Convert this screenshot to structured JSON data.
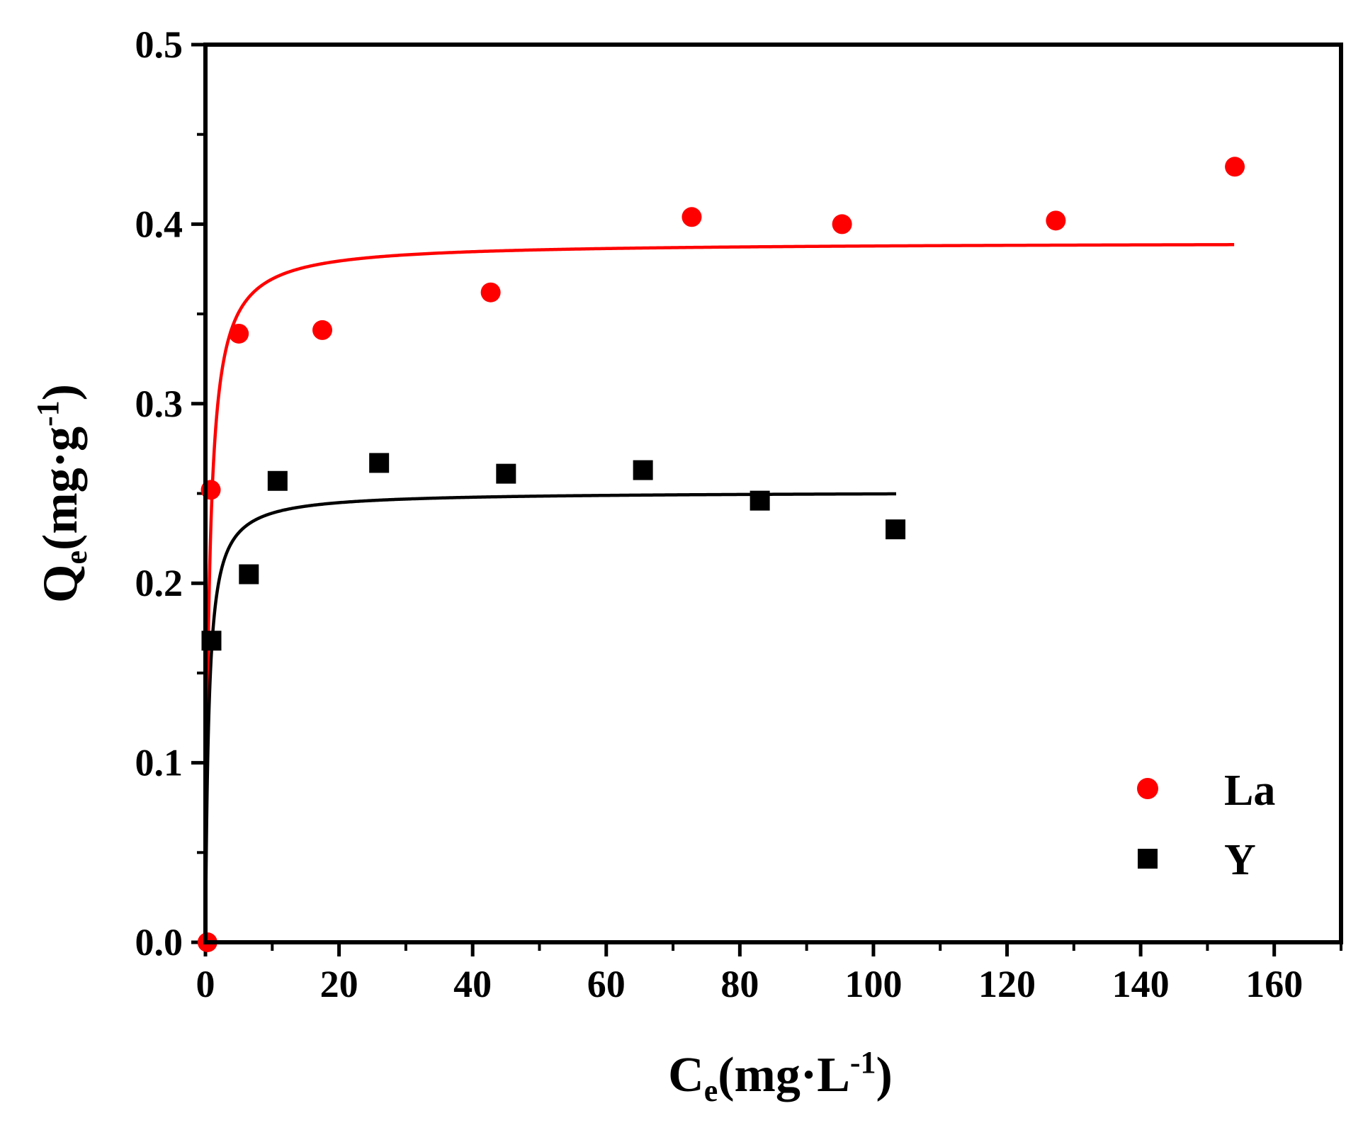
{
  "chart_data": {
    "type": "scatter",
    "title": "",
    "xlabel": {
      "main": "C",
      "sub": "e",
      "paren_open": "(mg·L",
      "sup": "-1",
      "paren_close": ")"
    },
    "ylabel": {
      "main": "Q",
      "sub": "e",
      "paren_open": "(mg·g",
      "sup": "-1",
      "paren_close": ")"
    },
    "xlim": [
      0,
      170
    ],
    "ylim": [
      0,
      0.5
    ],
    "x_ticks": [
      {
        "value": 0,
        "label": "0"
      },
      {
        "value": 20,
        "label": "20"
      },
      {
        "value": 40,
        "label": "40"
      },
      {
        "value": 60,
        "label": "60"
      },
      {
        "value": 80,
        "label": "80"
      },
      {
        "value": 100,
        "label": "100"
      },
      {
        "value": 120,
        "label": "120"
      },
      {
        "value": 140,
        "label": "140"
      },
      {
        "value": 160,
        "label": "160"
      }
    ],
    "x_minor_ticks": [
      10,
      30,
      50,
      70,
      90,
      110,
      130,
      150,
      170
    ],
    "y_ticks": [
      {
        "value": 0.0,
        "label": "0.0"
      },
      {
        "value": 0.1,
        "label": "0.1"
      },
      {
        "value": 0.2,
        "label": "0.2"
      },
      {
        "value": 0.3,
        "label": "0.3"
      },
      {
        "value": 0.4,
        "label": "0.4"
      },
      {
        "value": 0.5,
        "label": "0.5"
      }
    ],
    "y_minor_ticks": [
      0.05,
      0.15,
      0.25,
      0.35,
      0.45
    ],
    "legend_position": "bottom-right",
    "series": [
      {
        "name": "La",
        "marker": "circle",
        "color": "#ff0000",
        "points": [
          [
            0.3,
            0.0
          ],
          [
            0.8,
            0.252
          ],
          [
            5.0,
            0.339
          ],
          [
            17.5,
            0.341
          ],
          [
            42.7,
            0.362
          ],
          [
            72.8,
            0.404
          ],
          [
            95.3,
            0.4
          ],
          [
            127.3,
            0.402
          ],
          [
            154.1,
            0.432
          ]
        ],
        "fit": {
          "model": "Langmuir",
          "qmax": 0.39,
          "kl": 1.8,
          "x_range": [
            0,
            154
          ]
        }
      },
      {
        "name": "Y",
        "marker": "square",
        "color": "#000000",
        "points": [
          [
            0.9,
            0.168
          ],
          [
            6.5,
            0.205
          ],
          [
            10.8,
            0.257
          ],
          [
            26.0,
            0.267
          ],
          [
            45.0,
            0.261
          ],
          [
            65.5,
            0.263
          ],
          [
            83.0,
            0.246
          ],
          [
            103.3,
            0.23
          ]
        ],
        "fit": {
          "model": "Langmuir",
          "qmax": 0.251,
          "kl": 2.0,
          "x_range": [
            0,
            103.4
          ]
        }
      }
    ]
  }
}
